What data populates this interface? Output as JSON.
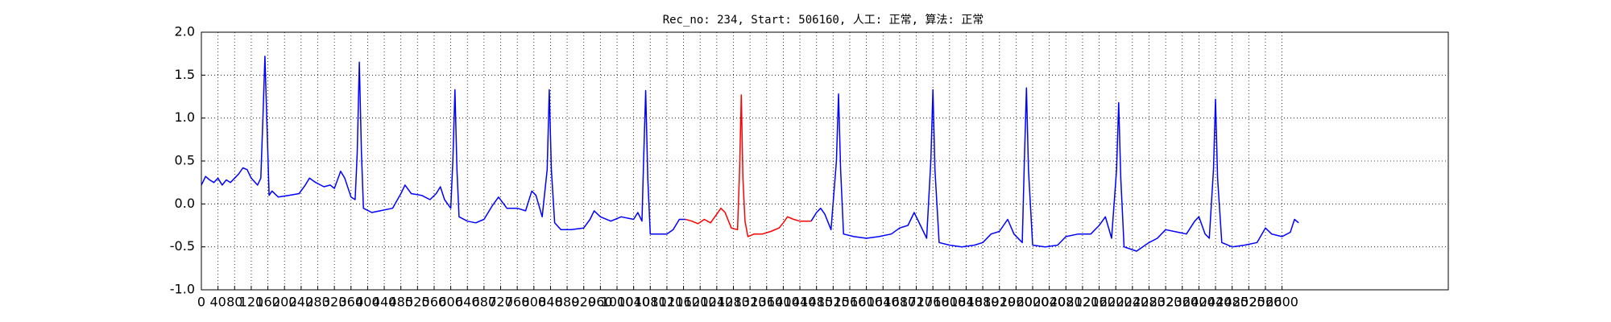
{
  "chart_data": {
    "type": "line",
    "title": "Rec_no: 234, Start: 506160, 人工: 正常, 算法: 正常",
    "xlim": [
      0,
      3000
    ],
    "ylim": [
      -1,
      2
    ],
    "xticks": [
      0,
      40,
      80,
      120,
      160,
      200,
      240,
      280,
      320,
      360,
      400,
      440,
      480,
      520,
      560,
      600,
      640,
      680,
      720,
      760,
      800,
      840,
      880,
      920,
      960,
      1000,
      1040,
      1080,
      1120,
      1160,
      1200,
      1240,
      1280,
      1320,
      1360,
      1400,
      1440,
      1480,
      1520,
      1560,
      1600,
      1640,
      1680,
      1720,
      1760,
      1800,
      1840,
      1880,
      1920,
      1960,
      2000,
      2040,
      2080,
      2120,
      2160,
      2200,
      2240,
      2280,
      2320,
      2360,
      2400,
      2440,
      2480,
      2520,
      2560,
      2600
    ],
    "yticks": [
      {
        "value": -1,
        "label": "-1.0"
      },
      -0.5,
      {
        "value": 0,
        "label": "0.0"
      },
      0.5,
      {
        "value": 1,
        "label": "1.0"
      },
      1.5,
      {
        "value": 2,
        "label": "2.0"
      }
    ],
    "grid": true,
    "series": [
      {
        "color": "#0000ff",
        "x": [
          0,
          10,
          20,
          30,
          40,
          50,
          60,
          70,
          80,
          90,
          100,
          110,
          120,
          135,
          143,
          148,
          153,
          158,
          163,
          170,
          185,
          210,
          235,
          250,
          260,
          275,
          295,
          310,
          320,
          335,
          345,
          360,
          370,
          375,
          380,
          385,
          390,
          410,
          430,
          460,
          480,
          490,
          505,
          530,
          550,
          565,
          575,
          585,
          600,
          605,
          610,
          615,
          620,
          640,
          660,
          680,
          700,
          715,
          735,
          760,
          780,
          795,
          805,
          820,
          832,
          837,
          842,
          850,
          865,
          890,
          920,
          935,
          945,
          960,
          985,
          1010,
          1040,
          1050,
          1060,
          1064,
          1069,
          1074,
          1080,
          1100,
          1120,
          1135,
          1150,
          1165,
          1300,
          1467,
          1480,
          1490,
          1500,
          1515,
          1528,
          1533,
          1538,
          1545,
          1570,
          1600,
          1630,
          1660,
          1680,
          1700,
          1715,
          1730,
          1745,
          1755,
          1760,
          1765,
          1775,
          1800,
          1830,
          1860,
          1880,
          1900,
          1920,
          1940,
          1955,
          1975,
          1980,
          1985,
          1990,
          2000,
          2030,
          2060,
          2080,
          2110,
          2140,
          2160,
          2175,
          2190,
          2202,
          2207,
          2212,
          2220,
          2250,
          2280,
          2300,
          2320,
          2350,
          2370,
          2390,
          2400,
          2415,
          2425,
          2435,
          2440,
          2445,
          2455,
          2480,
          2510,
          2540,
          2560,
          2575,
          2600,
          2620,
          2630,
          2640
        ],
        "values": [
          0.22,
          0.32,
          0.28,
          0.25,
          0.3,
          0.22,
          0.28,
          0.25,
          0.3,
          0.35,
          0.42,
          0.4,
          0.3,
          0.22,
          0.3,
          1.0,
          1.72,
          0.9,
          0.1,
          0.15,
          0.08,
          0.1,
          0.12,
          0.22,
          0.3,
          0.25,
          0.2,
          0.22,
          0.18,
          0.38,
          0.3,
          0.08,
          0.05,
          0.6,
          1.65,
          0.6,
          -0.05,
          -0.1,
          -0.08,
          -0.05,
          0.12,
          0.22,
          0.12,
          0.1,
          0.05,
          0.12,
          0.2,
          0.05,
          -0.05,
          0.5,
          1.33,
          0.4,
          -0.15,
          -0.2,
          -0.22,
          -0.18,
          -0.02,
          0.08,
          -0.05,
          -0.05,
          -0.08,
          0.15,
          0.1,
          -0.15,
          0.4,
          1.33,
          0.4,
          -0.22,
          -0.3,
          -0.3,
          -0.28,
          -0.18,
          -0.08,
          -0.15,
          -0.2,
          -0.15,
          -0.18,
          -0.1,
          -0.2,
          0.5,
          1.32,
          0.3,
          -0.35,
          -0.35,
          -0.35,
          -0.3,
          -0.18,
          -0.18,
          null,
          -0.2,
          -0.1,
          -0.05,
          -0.12,
          -0.3,
          0.5,
          1.28,
          0.4,
          -0.35,
          -0.38,
          -0.4,
          -0.38,
          -0.35,
          -0.28,
          -0.25,
          -0.1,
          -0.25,
          -0.4,
          0.5,
          1.33,
          0.4,
          -0.45,
          -0.48,
          -0.5,
          -0.48,
          -0.45,
          -0.35,
          -0.32,
          -0.18,
          -0.35,
          -0.45,
          0.5,
          1.35,
          0.4,
          -0.48,
          -0.5,
          -0.48,
          -0.38,
          -0.35,
          -0.35,
          -0.25,
          -0.15,
          -0.4,
          0.4,
          1.18,
          0.3,
          -0.5,
          -0.55,
          -0.45,
          -0.4,
          -0.3,
          -0.33,
          -0.35,
          -0.2,
          -0.15,
          -0.35,
          -0.4,
          0.4,
          1.22,
          0.3,
          -0.45,
          -0.5,
          -0.48,
          -0.45,
          -0.28,
          -0.35,
          -0.38,
          -0.33,
          -0.18,
          -0.22
        ]
      },
      {
        "color": "#ff0000",
        "x": [
          1165,
          1180,
          1195,
          1210,
          1225,
          1240,
          1250,
          1260,
          1275,
          1290,
          1295,
          1299,
          1303,
          1308,
          1315,
          1330,
          1350,
          1370,
          1390,
          1400,
          1410,
          1425,
          1440,
          1455,
          1467
        ],
        "values": [
          -0.18,
          -0.2,
          -0.23,
          -0.18,
          -0.22,
          -0.12,
          -0.05,
          -0.1,
          -0.28,
          -0.3,
          0.4,
          1.27,
          0.3,
          -0.2,
          -0.38,
          -0.35,
          -0.35,
          -0.32,
          -0.28,
          -0.22,
          -0.15,
          -0.18,
          -0.2,
          -0.2,
          -0.2
        ]
      }
    ]
  }
}
